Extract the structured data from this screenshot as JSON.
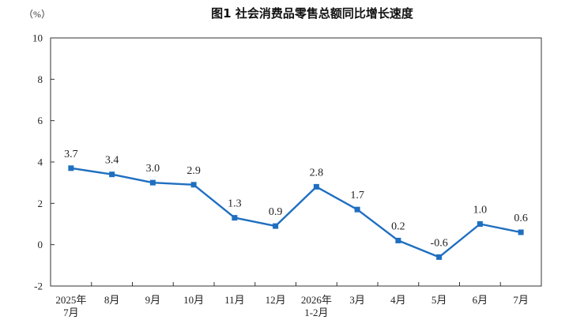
{
  "chart_data": {
    "type": "line",
    "title": "图1  社会消费品零售总额同比增长速度",
    "unit": "（%）",
    "ylim": [
      -2,
      10
    ],
    "yticks": [
      -2,
      0,
      2,
      4,
      6,
      8,
      10
    ],
    "categories": [
      [
        "2025年",
        "7月"
      ],
      [
        "8月"
      ],
      [
        "9月"
      ],
      [
        "10月"
      ],
      [
        "11月"
      ],
      [
        "12月"
      ],
      [
        "2026年",
        "1-2月"
      ],
      [
        "3月"
      ],
      [
        "4月"
      ],
      [
        "5月"
      ],
      [
        "6月"
      ],
      [
        "7月"
      ]
    ],
    "series": [
      {
        "values": [
          3.7,
          3.4,
          3.0,
          2.9,
          1.3,
          0.9,
          2.8,
          1.7,
          0.2,
          -0.6,
          1.0,
          0.6
        ],
        "labels": [
          "3.7",
          "3.4",
          "3.0",
          "2.9",
          "1.3",
          "0.9",
          "2.8",
          "1.7",
          "0.2",
          "-0.6",
          "1.0",
          "0.6"
        ],
        "color": "#1f6fc0"
      }
    ],
    "grid": false,
    "legend": "none"
  }
}
